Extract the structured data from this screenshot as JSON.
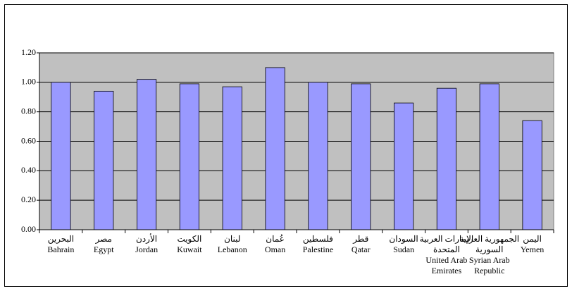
{
  "chart_data": {
    "type": "bar",
    "categories": [
      [
        "البحرين",
        "Bahrain"
      ],
      [
        "مصر",
        "Egypt"
      ],
      [
        "الأردن",
        "Jordan"
      ],
      [
        "الكويت",
        "Kuwait"
      ],
      [
        "لبنان",
        "Lebanon"
      ],
      [
        "عُمان",
        "Oman"
      ],
      [
        "فلسطين",
        "Palestine"
      ],
      [
        "قطر",
        "Qatar"
      ],
      [
        "السودان",
        "Sudan"
      ],
      [
        "الإمارات العربية",
        "المتحدة",
        "United Arab",
        "Emirates"
      ],
      [
        "الجمهورية العربية",
        "السورية",
        "Syrian Arab",
        "Republic"
      ],
      [
        "اليمن",
        "Yemen"
      ]
    ],
    "values": [
      1.0,
      0.94,
      1.02,
      0.99,
      0.97,
      1.1,
      1.0,
      0.99,
      0.86,
      0.96,
      0.99,
      0.74
    ],
    "color": "#9999ff",
    "ylim": [
      0,
      1.2
    ],
    "yticks": [
      {
        "value": 0,
        "label": "0.00"
      },
      {
        "value": 0.2,
        "label": "0.20"
      },
      {
        "value": 0.4,
        "label": "0.40"
      },
      {
        "value": 0.6,
        "label": "0.60"
      },
      {
        "value": 0.8,
        "label": "0.80"
      },
      {
        "value": 1.0,
        "label": "1.00"
      },
      {
        "value": 1.2,
        "label": "1.20"
      }
    ],
    "grid": true
  }
}
